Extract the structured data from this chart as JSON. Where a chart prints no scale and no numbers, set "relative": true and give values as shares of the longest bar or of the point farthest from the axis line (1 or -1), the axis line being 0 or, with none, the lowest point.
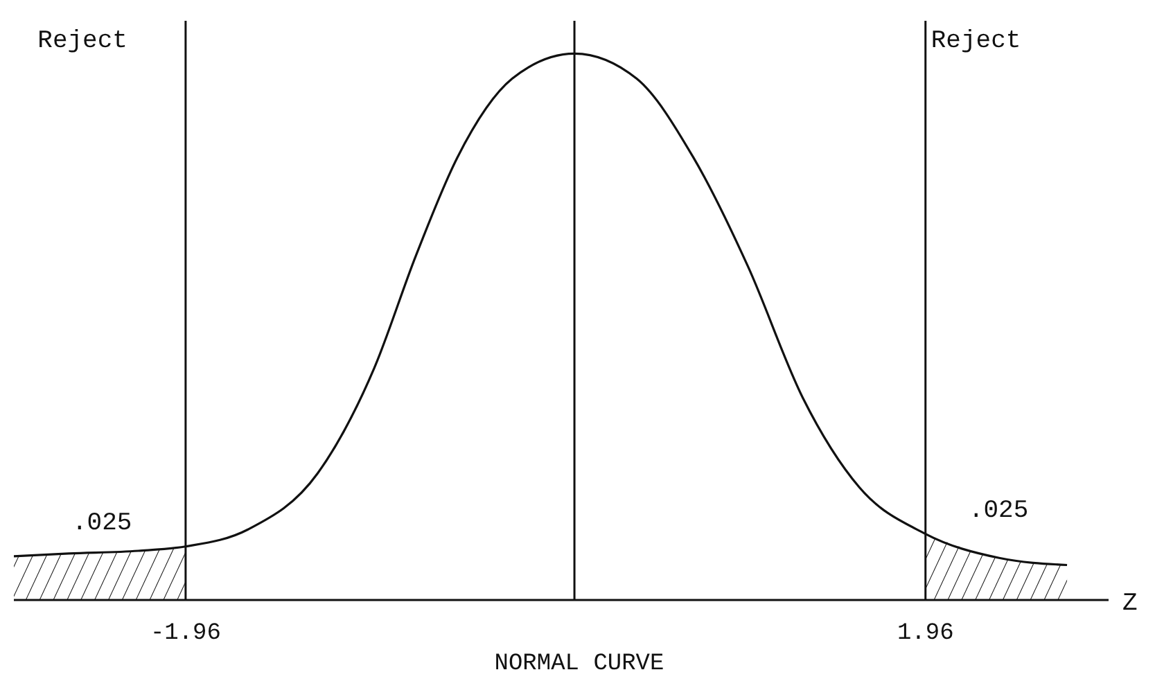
{
  "chart_data": {
    "type": "line",
    "title": "NORMAL CURVE",
    "xlabel": "Z",
    "relative": true,
    "x": [
      -2.87,
      -2.58,
      -2.21,
      -1.96,
      -1.63,
      -1.26,
      -0.96,
      -0.74,
      -0.52,
      -0.23,
      0.1,
      0.43,
      0.73,
      1.02,
      1.31,
      1.61,
      1.96,
      2.35,
      2.71
    ],
    "series": [
      {
        "color": "#111111",
        "values": [
          0.08,
          0.085,
          0.09,
          0.098,
          0.129,
          0.232,
          0.425,
          0.63,
          0.81,
          0.954,
          1,
          0.954,
          0.81,
          0.61,
          0.37,
          0.206,
          0.121,
          0.077,
          0.064
        ]
      },
      {
        "type": "area",
        "color": "#111111",
        "x": [
          -2.87,
          -2.58,
          -2.21,
          -1.96
        ],
        "values": [
          0.08,
          0.085,
          0.09,
          0.098
        ]
      },
      {
        "type": "area",
        "color": "#111111",
        "x": [
          1.96,
          2.35,
          2.71
        ],
        "values": [
          0.121,
          0.077,
          0.064
        ]
      }
    ],
    "xlim": [
      -2.87,
      2.93
    ],
    "xticks": [
      -1.96,
      1.96
    ],
    "tick_labels": "x",
    "grid": false,
    "marker": "none",
    "ref_lines": [
      {
        "axis": "x",
        "value": -1.96,
        "color": "#111111"
      },
      {
        "axis": "x",
        "value": 0.1,
        "color": "#111111"
      },
      {
        "axis": "x",
        "value": 1.96,
        "color": "#111111"
      }
    ],
    "annotations": [
      "Reject",
      "Reject",
      ".025",
      ".025"
    ]
  }
}
